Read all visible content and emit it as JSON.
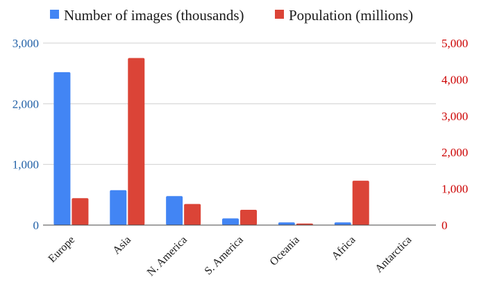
{
  "chart_data": {
    "type": "bar",
    "categories": [
      "Europe",
      "Asia",
      "N. America",
      "S. America",
      "Oceania",
      "Africa",
      "Antarctica"
    ],
    "series": [
      {
        "name": "Number of images (thousands)",
        "axis": "left",
        "color": "#4285f4",
        "values": [
          2520,
          575,
          478,
          110,
          45,
          45,
          5
        ]
      },
      {
        "name": "Population (millions)",
        "axis": "right",
        "color": "#db4437",
        "values": [
          740,
          4590,
          580,
          420,
          42,
          1220,
          0
        ]
      }
    ],
    "y_left": {
      "lim": [
        0,
        3000
      ],
      "ticks": [
        0,
        1000,
        2000,
        3000
      ],
      "tick_labels": [
        "0",
        "1,000",
        "2,000",
        "3,000"
      ],
      "color": "#1f5fa6"
    },
    "y_right": {
      "lim": [
        0,
        5000
      ],
      "ticks": [
        0,
        1000,
        2000,
        3000,
        4000,
        5000
      ],
      "tick_labels": [
        "0",
        "1,000",
        "2,000",
        "3,000",
        "4,000",
        "5,000"
      ],
      "color": "#cc0000"
    },
    "grid": true,
    "legend_position": "top-center",
    "x_label_rotation": "-45"
  }
}
